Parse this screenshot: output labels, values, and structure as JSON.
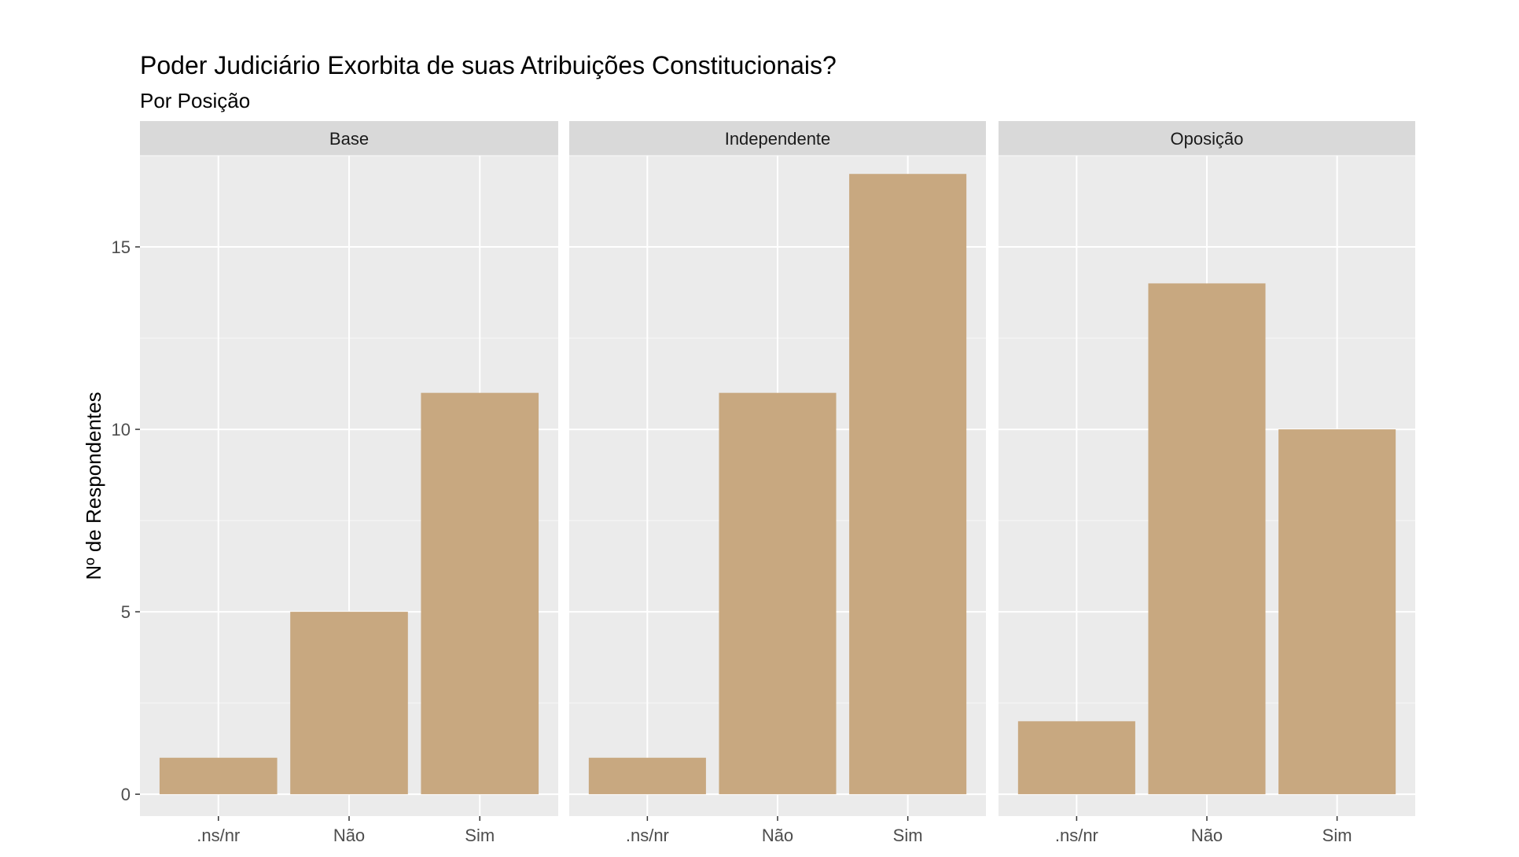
{
  "chart_data": {
    "type": "bar",
    "title": "Poder Judiciário Exorbita de suas Atribuições Constitucionais?",
    "subtitle": "Por Posição",
    "xlabel": "",
    "ylabel": "Nº de Respondentes",
    "ylim": [
      -0.6,
      17.5
    ],
    "yticks": [
      0,
      5,
      10,
      15
    ],
    "ytick_labels": [
      "0",
      "5",
      "10",
      "15"
    ],
    "grid": true,
    "categories": [
      ".ns/nr",
      "Não",
      "Sim"
    ],
    "facets": [
      {
        "name": "Base",
        "values": [
          1,
          5,
          11
        ]
      },
      {
        "name": "Independente",
        "values": [
          1,
          11,
          17
        ]
      },
      {
        "name": "Oposição",
        "values": [
          2,
          14,
          10
        ]
      }
    ]
  },
  "colors": {
    "bar_fill": "#c8a880",
    "panel_bg": "#ebebeb",
    "strip_bg": "#d9d9d9",
    "grid_major": "#ffffff",
    "grid_minor": "#f5f5f5",
    "tick_color": "#333333"
  }
}
